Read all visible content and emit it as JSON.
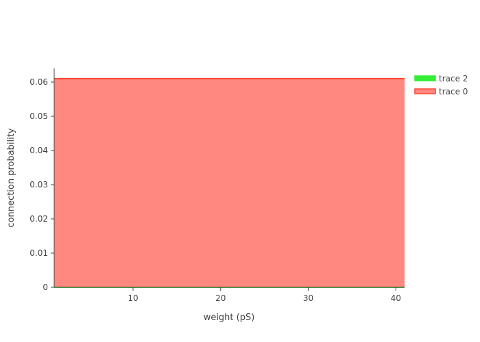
{
  "chart_data": {
    "type": "area",
    "xlabel": "weight (pS)",
    "ylabel": "connection probability",
    "xlim": [
      1,
      41
    ],
    "ylim": [
      0,
      0.064
    ],
    "xticks": [
      10,
      20,
      30,
      40
    ],
    "yticks": [
      0,
      0.01,
      0.02,
      0.03,
      0.04,
      0.05,
      0.06
    ],
    "ytick_labels": [
      "0",
      "0.01",
      "0.02",
      "0.03",
      "0.04",
      "0.05",
      "0.06"
    ],
    "legend_position": "top-right",
    "series": [
      {
        "name": "trace 2",
        "color": "#33ee33",
        "x": [
          1,
          41
        ],
        "y": [
          0,
          0
        ]
      },
      {
        "name": "trace 0",
        "color": "#ff4433",
        "fill": "#ff8880",
        "x": [
          1,
          41
        ],
        "y": [
          0.061,
          0.061
        ]
      }
    ]
  }
}
